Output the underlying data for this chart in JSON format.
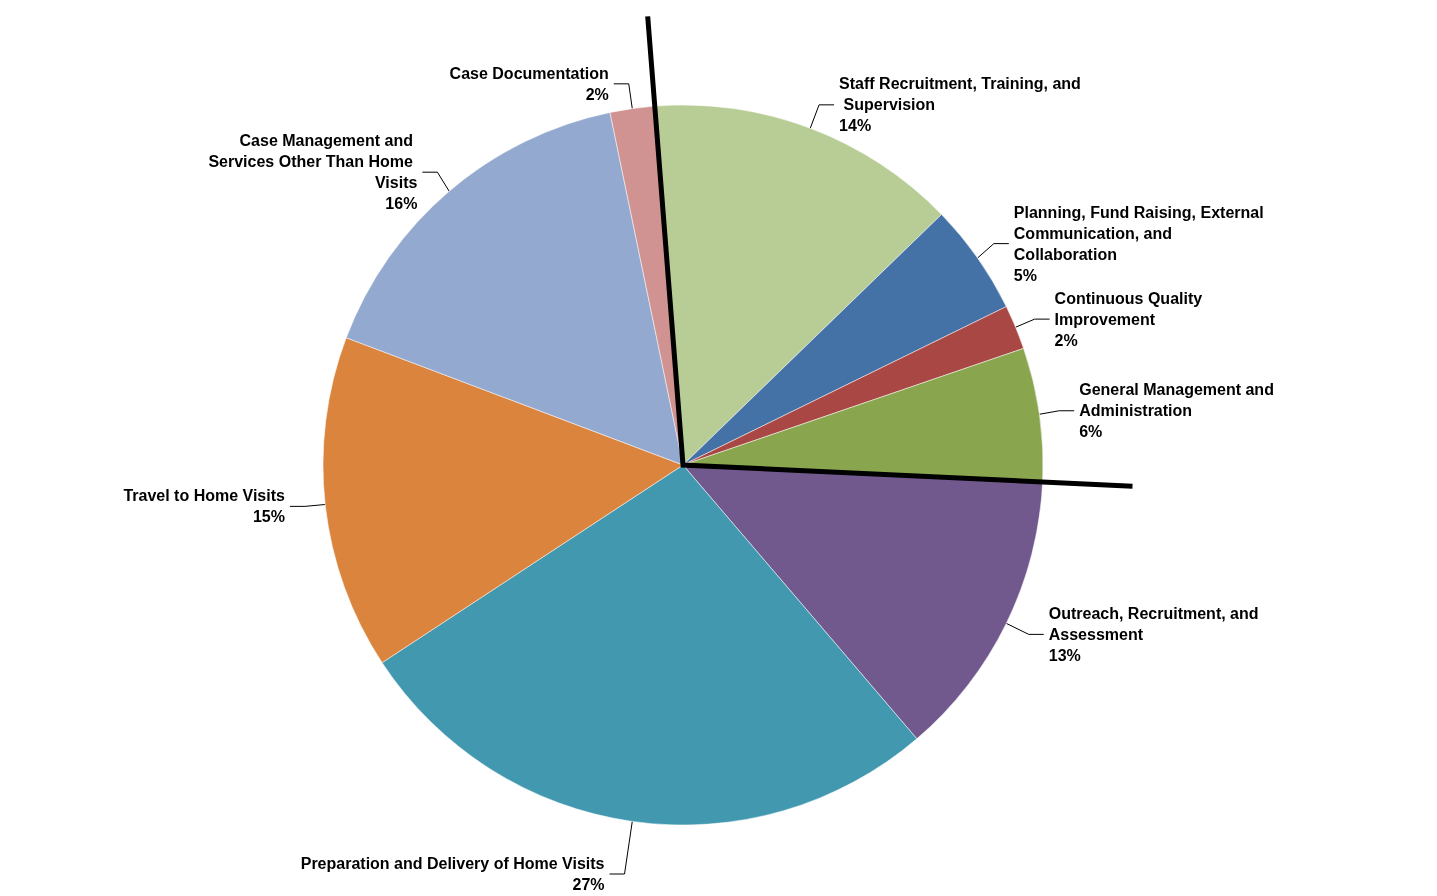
{
  "chart_data": {
    "type": "pie",
    "categories": [
      "Staff Recruitment, Training, and Supervision",
      "Planning, Fund Raising, External Communication, and Collaboration",
      "Continuous Quality Improvement",
      "General Management and Administration",
      "Outreach, Recruitment, and Assessment",
      "Preparation and Delivery of Home Visits",
      "Travel to Home Visits",
      "Case Management and Services Other Than Home Visits",
      "Case Documentation"
    ],
    "values": [
      14,
      5,
      2,
      6,
      13,
      27,
      15,
      16,
      2
    ],
    "colors": [
      "#b8cd95",
      "#4572a6",
      "#a94744",
      "#89a54e",
      "#71598e",
      "#4198af",
      "#db843d",
      "#93a9cf",
      "#d09392"
    ],
    "value_labels": [
      "14%",
      "5%",
      "2%",
      "6%",
      "13%",
      "27%",
      "15%",
      "16%",
      "2%"
    ],
    "legend": false
  }
}
